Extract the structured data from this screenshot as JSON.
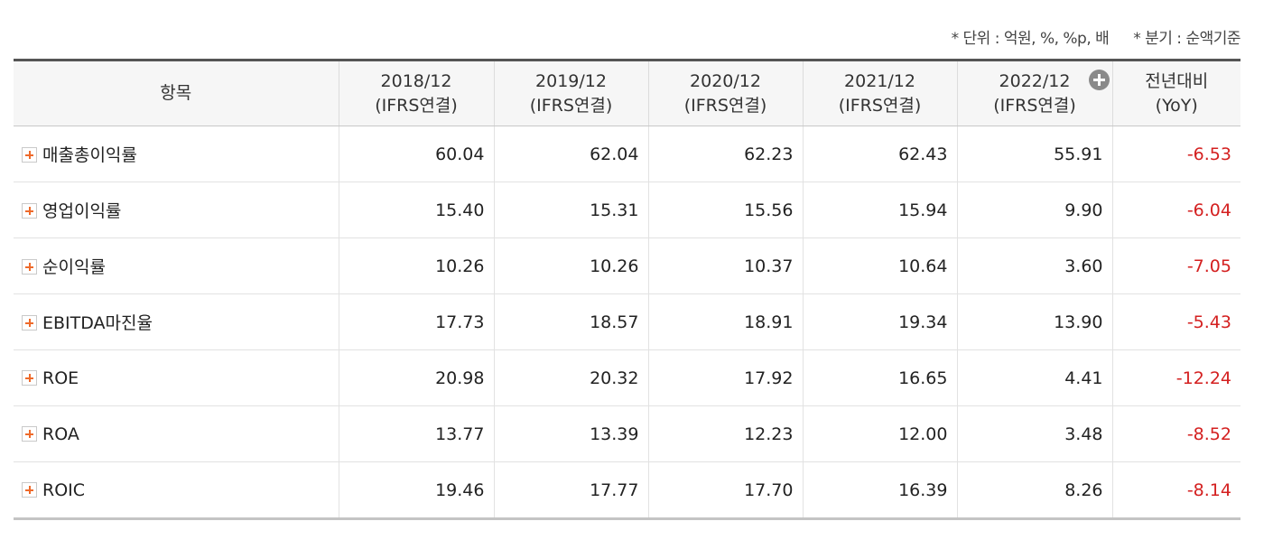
{
  "note": {
    "unit": "* 단위 : 억원, %, %p, 배",
    "quarter": "* 분기 : 순액기준"
  },
  "header": {
    "item": "항목",
    "columns": [
      {
        "line1": "2018/12",
        "line2": "(IFRS연결)"
      },
      {
        "line1": "2019/12",
        "line2": "(IFRS연결)"
      },
      {
        "line1": "2020/12",
        "line2": "(IFRS연결)"
      },
      {
        "line1": "2021/12",
        "line2": "(IFRS연결)"
      },
      {
        "line1": "2022/12",
        "line2": "(IFRS연결)"
      },
      {
        "line1": "전년대비",
        "line2": "(YoY)"
      }
    ]
  },
  "rows": [
    {
      "label": "매출총이익률",
      "values": [
        "60.04",
        "62.04",
        "62.23",
        "62.43",
        "55.91"
      ],
      "yoy": "-6.53"
    },
    {
      "label": "영업이익률",
      "values": [
        "15.40",
        "15.31",
        "15.56",
        "15.94",
        "9.90"
      ],
      "yoy": "-6.04"
    },
    {
      "label": "순이익률",
      "values": [
        "10.26",
        "10.26",
        "10.37",
        "10.64",
        "3.60"
      ],
      "yoy": "-7.05"
    },
    {
      "label": "EBITDA마진율",
      "values": [
        "17.73",
        "18.57",
        "18.91",
        "19.34",
        "13.90"
      ],
      "yoy": "-5.43"
    },
    {
      "label": "ROE",
      "values": [
        "20.98",
        "20.32",
        "17.92",
        "16.65",
        "4.41"
      ],
      "yoy": "-12.24"
    },
    {
      "label": "ROA",
      "values": [
        "13.77",
        "13.39",
        "12.23",
        "12.00",
        "3.48"
      ],
      "yoy": "-8.52"
    },
    {
      "label": "ROIC",
      "values": [
        "19.46",
        "17.77",
        "17.70",
        "16.39",
        "8.26"
      ],
      "yoy": "-8.14"
    }
  ],
  "colors": {
    "negative": "#d42020",
    "plus_icon": "#ee6a2b",
    "header_bg": "#f6f6f6"
  },
  "icons": {
    "row_expand": "plus-square-icon",
    "column_expand": "plus-circle-icon"
  }
}
